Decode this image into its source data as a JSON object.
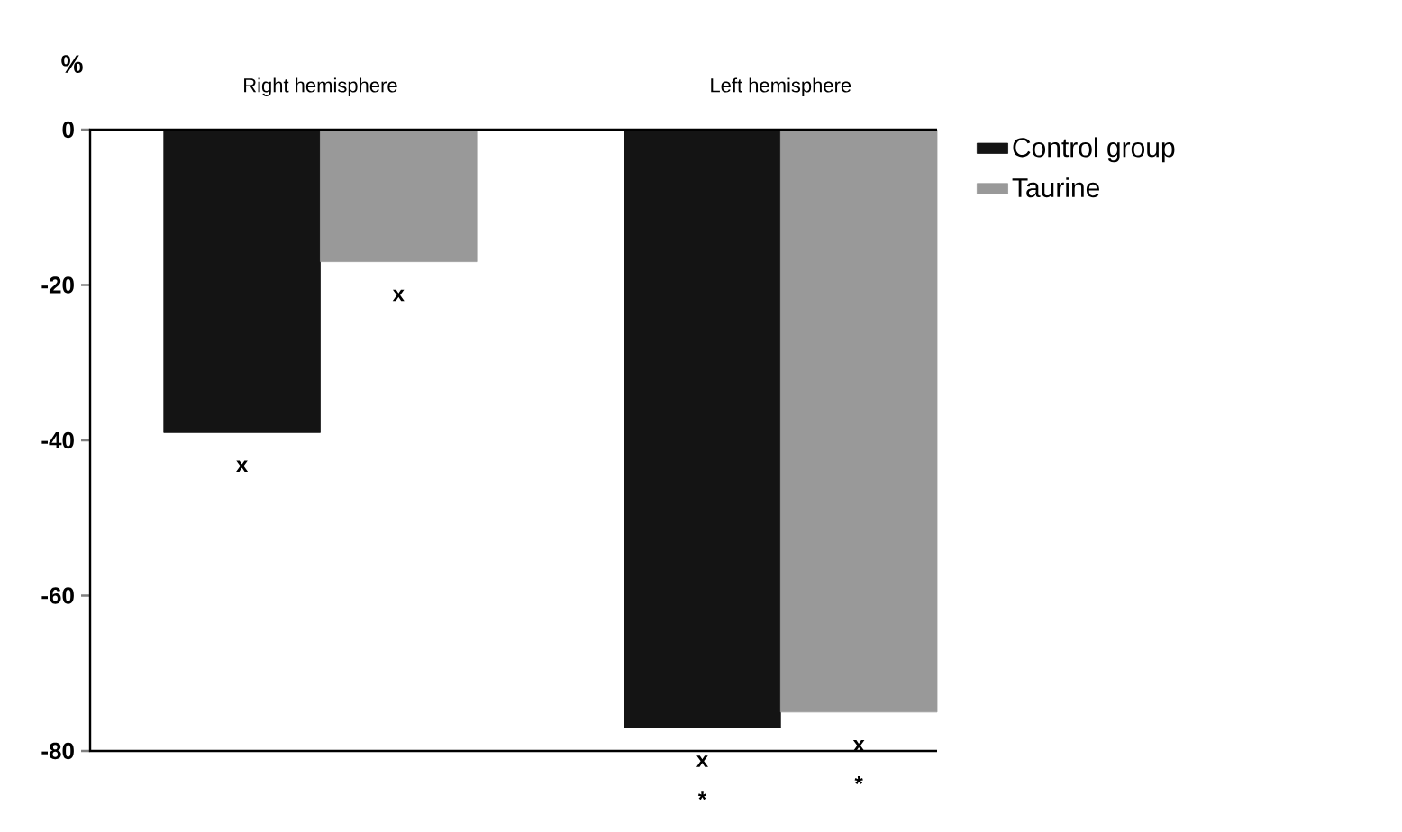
{
  "chart_data": {
    "type": "bar",
    "ylabel": "%",
    "categories": [
      "Right hemisphere",
      "Left hemisphere"
    ],
    "series": [
      {
        "name": "Control group",
        "color": "#141414",
        "values": [
          -39,
          -77
        ],
        "value_labels": [
          "x",
          "x *"
        ]
      },
      {
        "name": "Taurine",
        "color": "#999999",
        "values": [
          -17,
          -75
        ],
        "value_labels": [
          "x",
          "x *"
        ]
      }
    ],
    "ylim": [
      -80,
      0
    ],
    "yticks": [
      0,
      -20,
      -40,
      -60,
      -80
    ],
    "legend": "top right"
  }
}
